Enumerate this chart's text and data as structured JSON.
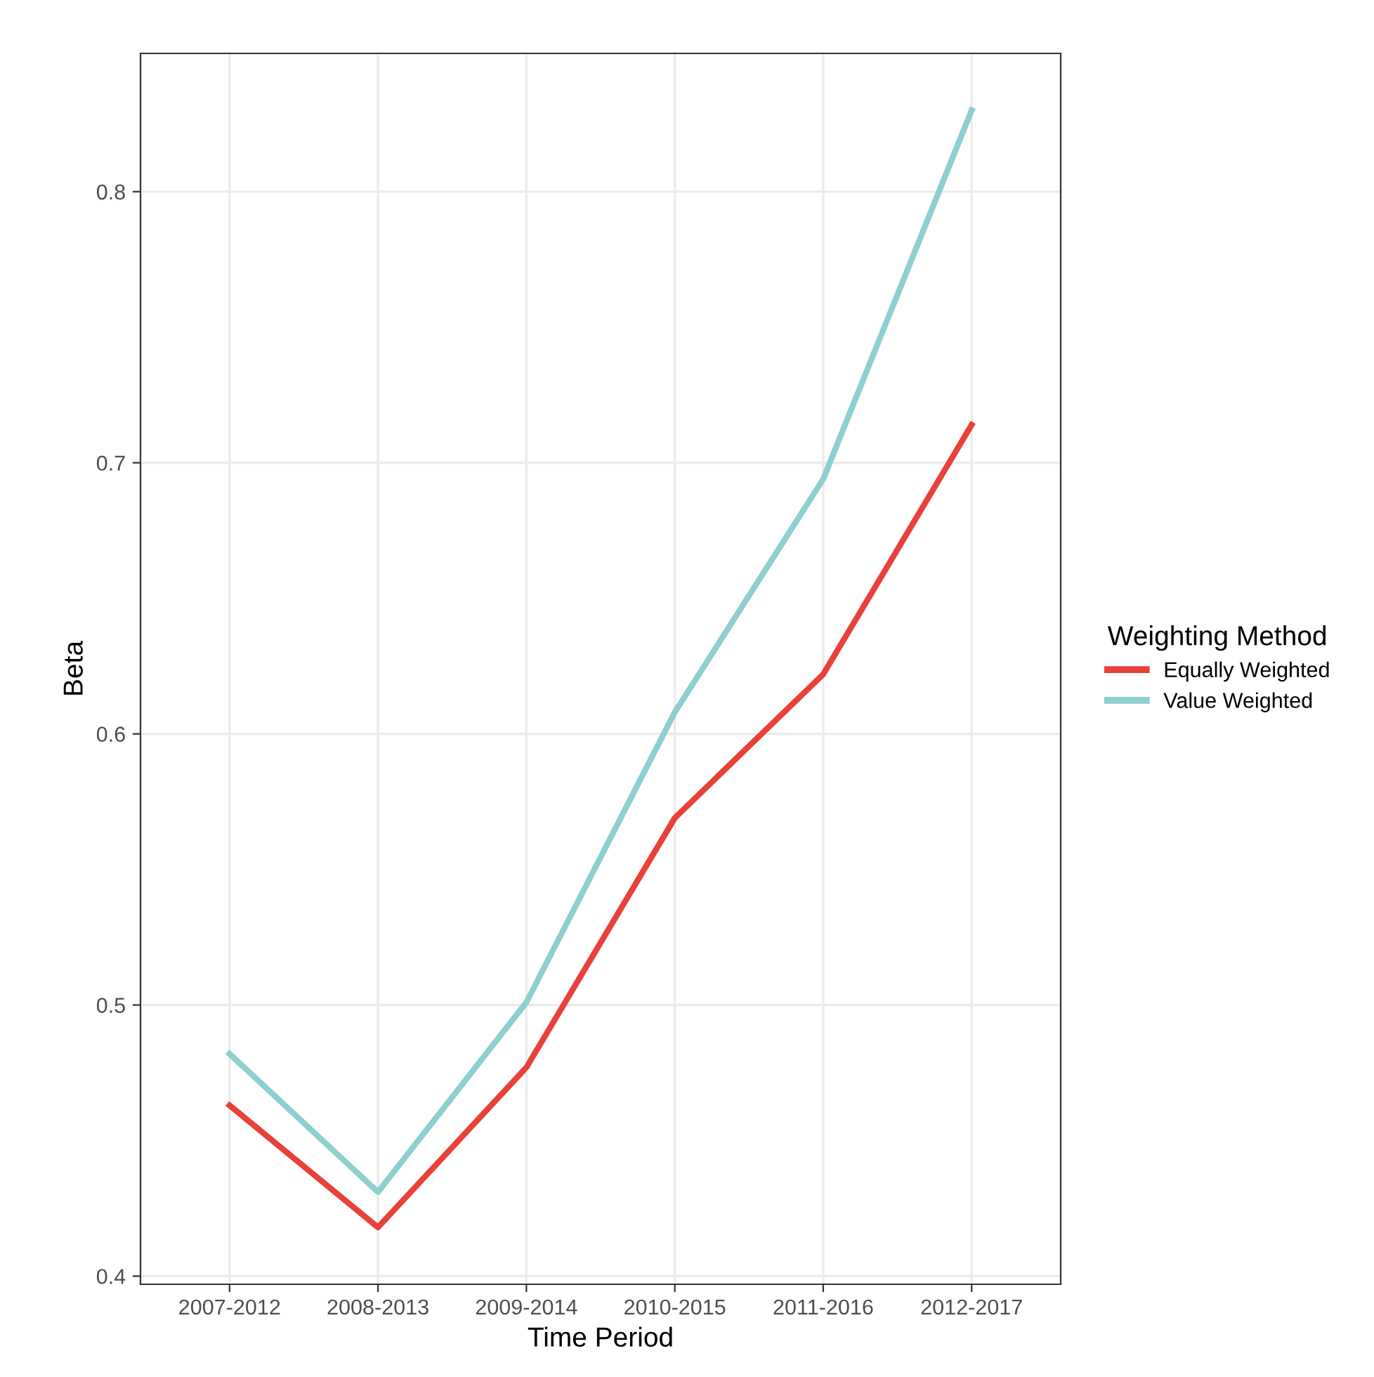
{
  "chart_data": {
    "type": "line",
    "xlabel": "Time Period",
    "ylabel": "Beta",
    "legend_title": "Weighting Method",
    "categories": [
      "2007-2012",
      "2008-2013",
      "2009-2014",
      "2010-2015",
      "2011-2016",
      "2012-2017"
    ],
    "series": [
      {
        "name": "Equally Weighted",
        "color": "#e8413a",
        "values": [
          0.463,
          0.418,
          0.477,
          0.569,
          0.622,
          0.714
        ]
      },
      {
        "name": "Value Weighted",
        "color": "#8ecfd0",
        "values": [
          0.482,
          0.431,
          0.501,
          0.608,
          0.694,
          0.83
        ]
      }
    ],
    "ylim": [
      0.397,
      0.851
    ],
    "yticks": [
      0.4,
      0.5,
      0.6,
      0.7,
      0.8
    ],
    "grid": true,
    "legend": "right",
    "marker": "none",
    "line_style": "solid"
  }
}
